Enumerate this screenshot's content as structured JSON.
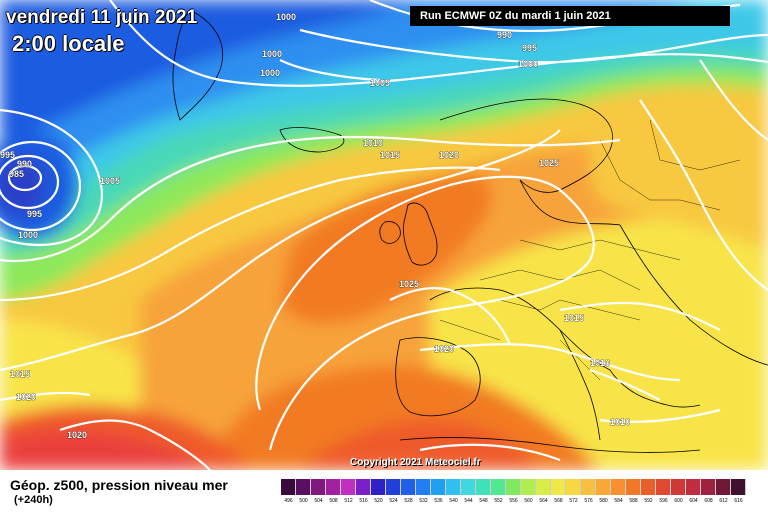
{
  "header": {
    "date": "vendredi 11 juin 2021",
    "time": "2:00 locale",
    "run": "Run ECMWF 0Z du mardi 1 juin 2021"
  },
  "copyright": "Copyright 2021 Meteociel.fr",
  "footer": {
    "title": "Géop. z500, pression niveau mer",
    "subtitle": "(+240h)"
  },
  "colors": {
    "deep_blue": "#1f5ce0",
    "blue": "#2f8ff0",
    "cyan": "#3ec8e8",
    "teal": "#48d8b8",
    "green": "#8ee85a",
    "yellow_green": "#d8ee4a",
    "yellow": "#f8e44a",
    "light_orange": "#f8c840",
    "orange": "#f7a33b",
    "dark_orange": "#f27a24",
    "red_orange": "#ef5a2a",
    "red": "#ea3f3c",
    "isobar": "#ffffff",
    "borders": "#000000"
  },
  "legend": {
    "labels": [
      "496",
      "500",
      "504",
      "508",
      "512",
      "516",
      "520",
      "524",
      "528",
      "532",
      "536",
      "540",
      "544",
      "548",
      "552",
      "556",
      "560",
      "564",
      "568",
      "572",
      "576",
      "580",
      "584",
      "588",
      "592",
      "596",
      "600",
      "604",
      "608",
      "612",
      "616"
    ],
    "colors": [
      "#3a0a3a",
      "#5a1060",
      "#801880",
      "#a020a0",
      "#c030c0",
      "#7a20c8",
      "#3020c8",
      "#2040d8",
      "#2060e8",
      "#2080f0",
      "#20a0f0",
      "#30c0f0",
      "#40d8e0",
      "#40e0b8",
      "#50e890",
      "#80e860",
      "#b0ee50",
      "#d8ee48",
      "#f0e848",
      "#f8d840",
      "#f8c040",
      "#f8a838",
      "#f89030",
      "#f07828",
      "#e86028",
      "#e04830",
      "#d03838",
      "#c02c40",
      "#a02040",
      "#701838",
      "#401030"
    ]
  },
  "isobar_labels": [
    {
      "text": "1000"
    },
    {
      "text": "990"
    },
    {
      "text": "995"
    },
    {
      "text": "1000"
    },
    {
      "text": "1000"
    },
    {
      "text": "1000"
    },
    {
      "text": "1005"
    },
    {
      "text": "995"
    },
    {
      "text": "990"
    },
    {
      "text": "985"
    },
    {
      "text": "1005"
    },
    {
      "text": "995"
    },
    {
      "text": "1000"
    },
    {
      "text": "1010"
    },
    {
      "text": "1015"
    },
    {
      "text": "1020"
    },
    {
      "text": "1025"
    },
    {
      "text": "1025"
    },
    {
      "text": "1015"
    },
    {
      "text": "1020"
    },
    {
      "text": "1010"
    },
    {
      "text": "1015"
    },
    {
      "text": "1020"
    },
    {
      "text": "1020"
    },
    {
      "text": "1010"
    }
  ]
}
